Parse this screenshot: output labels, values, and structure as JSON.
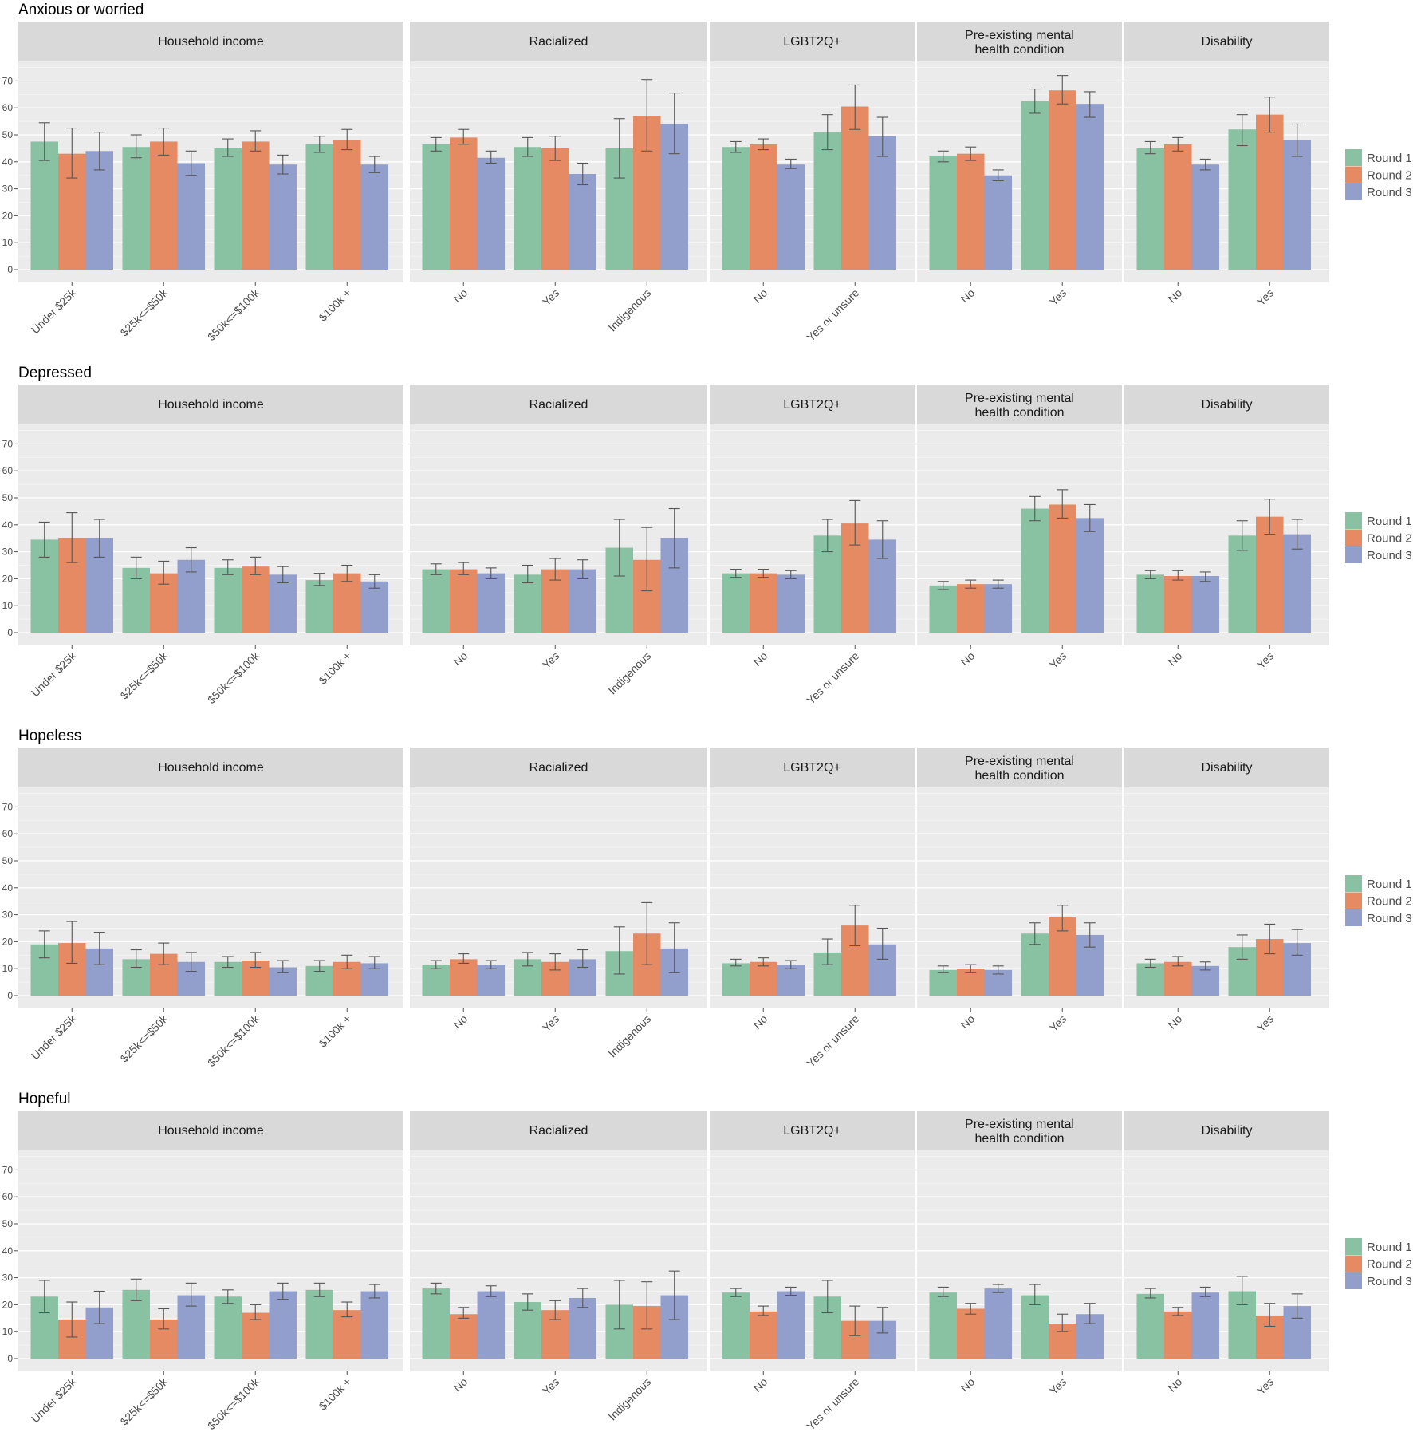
{
  "chart_data": {
    "type": "bar",
    "series_names": [
      "Round 1",
      "Round 2",
      "Round 3"
    ],
    "colors": [
      "#88c2a3",
      "#e58a62",
      "#929fcc"
    ],
    "y_ticks": [
      0,
      10,
      20,
      30,
      40,
      50,
      60,
      70
    ],
    "ylim": [
      -5,
      80
    ],
    "error_bars": true,
    "legend_position": "right",
    "panels": [
      {
        "title": "Household income",
        "categories": [
          "Under $25k",
          "$25k<=$50k",
          "$50k<=$100k",
          "$100k +"
        ]
      },
      {
        "title": "Racialized",
        "categories": [
          "No",
          "Yes",
          "Indigenous"
        ]
      },
      {
        "title": "LGBT2Q+",
        "categories": [
          "No",
          "Yes or unsure"
        ]
      },
      {
        "title": "Pre-existing mental health condition",
        "title_lines": [
          "Pre-existing mental",
          "health condition"
        ],
        "categories": [
          "No",
          "Yes"
        ]
      },
      {
        "title": "Disability",
        "categories": [
          "No",
          "Yes"
        ]
      }
    ],
    "rows": [
      {
        "title": "Anxious or worried",
        "values": [
          [
            [
              47.5,
              40.5,
              54.5
            ],
            [
              43.0,
              34.0,
              52.5
            ],
            [
              44.0,
              37.0,
              51.0
            ]
          ],
          [
            [
              45.5,
              41.5,
              50.0
            ],
            [
              47.5,
              42.5,
              52.5
            ],
            [
              39.5,
              35.0,
              44.0
            ]
          ],
          [
            [
              45.0,
              42.0,
              48.5
            ],
            [
              47.5,
              44.0,
              51.5
            ],
            [
              39.0,
              35.5,
              42.5
            ]
          ],
          [
            [
              46.5,
              43.5,
              49.5
            ],
            [
              48.0,
              44.5,
              52.0
            ],
            [
              39.0,
              36.0,
              42.0
            ]
          ],
          [
            [
              46.5,
              44.0,
              49.0
            ],
            [
              49.0,
              46.5,
              52.0
            ],
            [
              41.5,
              39.5,
              44.0
            ]
          ],
          [
            [
              45.5,
              42.0,
              49.0
            ],
            [
              45.0,
              40.5,
              49.5
            ],
            [
              35.5,
              31.5,
              39.5
            ]
          ],
          [
            [
              45.0,
              34.0,
              56.0
            ],
            [
              57.0,
              44.0,
              70.5
            ],
            [
              54.0,
              43.0,
              65.5
            ]
          ],
          [
            [
              45.5,
              43.5,
              47.5
            ],
            [
              46.5,
              44.5,
              48.5
            ],
            [
              39.0,
              37.5,
              41.0
            ]
          ],
          [
            [
              51.0,
              44.5,
              57.5
            ],
            [
              60.5,
              52.0,
              68.5
            ],
            [
              49.5,
              42.0,
              56.5
            ]
          ],
          [
            [
              42.0,
              40.0,
              44.0
            ],
            [
              43.0,
              40.5,
              45.5
            ],
            [
              35.0,
              33.0,
              37.0
            ]
          ],
          [
            [
              62.5,
              58.0,
              67.0
            ],
            [
              66.5,
              61.5,
              72.0
            ],
            [
              61.5,
              56.5,
              66.0
            ]
          ],
          [
            [
              45.0,
              43.0,
              47.5
            ],
            [
              46.5,
              44.0,
              49.0
            ],
            [
              39.0,
              37.0,
              41.0
            ]
          ],
          [
            [
              52.0,
              46.0,
              57.5
            ],
            [
              57.5,
              51.0,
              64.0
            ],
            [
              48.0,
              42.0,
              54.0
            ]
          ]
        ]
      },
      {
        "title": "Depressed",
        "values": [
          [
            [
              34.5,
              28.0,
              41.0
            ],
            [
              35.0,
              26.0,
              44.5
            ],
            [
              35.0,
              28.0,
              42.0
            ]
          ],
          [
            [
              24.0,
              20.0,
              28.0
            ],
            [
              22.0,
              18.0,
              26.5
            ],
            [
              27.0,
              22.5,
              31.5
            ]
          ],
          [
            [
              24.0,
              21.5,
              27.0
            ],
            [
              24.5,
              21.5,
              28.0
            ],
            [
              21.5,
              18.5,
              24.5
            ]
          ],
          [
            [
              19.5,
              17.5,
              22.0
            ],
            [
              22.0,
              19.0,
              25.0
            ],
            [
              19.0,
              16.5,
              21.5
            ]
          ],
          [
            [
              23.5,
              21.5,
              25.5
            ],
            [
              23.5,
              21.5,
              26.0
            ],
            [
              22.0,
              20.0,
              24.0
            ]
          ],
          [
            [
              21.5,
              18.5,
              25.0
            ],
            [
              23.5,
              19.5,
              27.5
            ],
            [
              23.5,
              20.0,
              27.0
            ]
          ],
          [
            [
              31.5,
              21.0,
              42.0
            ],
            [
              27.0,
              15.5,
              39.0
            ],
            [
              35.0,
              24.0,
              46.0
            ]
          ],
          [
            [
              22.0,
              20.5,
              23.5
            ],
            [
              22.0,
              20.5,
              23.5
            ],
            [
              21.5,
              20.0,
              23.0
            ]
          ],
          [
            [
              36.0,
              30.0,
              42.0
            ],
            [
              40.5,
              32.5,
              49.0
            ],
            [
              34.5,
              27.5,
              41.5
            ]
          ],
          [
            [
              17.5,
              16.0,
              19.0
            ],
            [
              18.0,
              16.5,
              19.5
            ],
            [
              18.0,
              16.5,
              19.5
            ]
          ],
          [
            [
              46.0,
              41.5,
              50.5
            ],
            [
              47.5,
              42.5,
              53.0
            ],
            [
              42.5,
              37.5,
              47.5
            ]
          ],
          [
            [
              21.5,
              20.0,
              23.0
            ],
            [
              21.0,
              19.5,
              23.0
            ],
            [
              21.0,
              19.0,
              22.5
            ]
          ],
          [
            [
              36.0,
              30.5,
              41.5
            ],
            [
              43.0,
              36.5,
              49.5
            ],
            [
              36.5,
              31.0,
              42.0
            ]
          ]
        ]
      },
      {
        "title": "Hopeless",
        "values": [
          [
            [
              19.0,
              14.0,
              24.0
            ],
            [
              19.5,
              12.0,
              27.5
            ],
            [
              17.5,
              11.5,
              23.5
            ]
          ],
          [
            [
              13.5,
              10.5,
              17.0
            ],
            [
              15.5,
              11.5,
              19.5
            ],
            [
              12.5,
              9.0,
              16.0
            ]
          ],
          [
            [
              12.5,
              10.5,
              14.5
            ],
            [
              13.0,
              10.5,
              16.0
            ],
            [
              10.5,
              8.5,
              13.0
            ]
          ],
          [
            [
              11.0,
              9.0,
              13.0
            ],
            [
              12.5,
              10.0,
              15.0
            ],
            [
              12.0,
              10.0,
              14.5
            ]
          ],
          [
            [
              11.5,
              10.0,
              13.0
            ],
            [
              13.5,
              12.0,
              15.5
            ],
            [
              11.5,
              10.0,
              13.0
            ]
          ],
          [
            [
              13.5,
              11.0,
              16.0
            ],
            [
              12.5,
              9.5,
              15.5
            ],
            [
              13.5,
              10.5,
              17.0
            ]
          ],
          [
            [
              16.5,
              8.0,
              25.5
            ],
            [
              23.0,
              11.5,
              34.5
            ],
            [
              17.5,
              8.5,
              27.0
            ]
          ],
          [
            [
              12.0,
              11.0,
              13.5
            ],
            [
              12.5,
              11.0,
              14.0
            ],
            [
              11.5,
              10.0,
              13.0
            ]
          ],
          [
            [
              16.0,
              11.5,
              21.0
            ],
            [
              26.0,
              18.5,
              33.5
            ],
            [
              19.0,
              13.5,
              25.0
            ]
          ],
          [
            [
              9.5,
              8.5,
              11.0
            ],
            [
              10.0,
              8.5,
              11.5
            ],
            [
              9.5,
              8.0,
              11.0
            ]
          ],
          [
            [
              23.0,
              19.0,
              27.0
            ],
            [
              29.0,
              24.0,
              33.5
            ],
            [
              22.5,
              18.0,
              27.0
            ]
          ],
          [
            [
              12.0,
              10.5,
              13.5
            ],
            [
              12.5,
              11.0,
              14.5
            ],
            [
              11.0,
              9.5,
              12.5
            ]
          ],
          [
            [
              18.0,
              13.5,
              22.5
            ],
            [
              21.0,
              15.5,
              26.5
            ],
            [
              19.5,
              15.0,
              24.5
            ]
          ]
        ]
      },
      {
        "title": "Hopeful",
        "values": [
          [
            [
              23.0,
              17.0,
              29.0
            ],
            [
              14.5,
              8.0,
              21.0
            ],
            [
              19.0,
              13.0,
              25.0
            ]
          ],
          [
            [
              25.5,
              21.5,
              29.5
            ],
            [
              14.5,
              11.0,
              18.5
            ],
            [
              23.5,
              19.5,
              28.0
            ]
          ],
          [
            [
              23.0,
              20.5,
              25.5
            ],
            [
              17.0,
              14.5,
              20.0
            ],
            [
              25.0,
              22.0,
              28.0
            ]
          ],
          [
            [
              25.5,
              23.0,
              28.0
            ],
            [
              18.0,
              15.5,
              21.0
            ],
            [
              25.0,
              22.5,
              27.5
            ]
          ],
          [
            [
              26.0,
              24.0,
              28.0
            ],
            [
              16.5,
              15.0,
              19.0
            ],
            [
              25.0,
              23.0,
              27.0
            ]
          ],
          [
            [
              21.0,
              18.0,
              24.0
            ],
            [
              18.0,
              14.5,
              21.5
            ],
            [
              22.5,
              19.0,
              26.0
            ]
          ],
          [
            [
              20.0,
              11.0,
              29.0
            ],
            [
              19.5,
              11.0,
              28.5
            ],
            [
              23.5,
              14.5,
              32.5
            ]
          ],
          [
            [
              24.5,
              23.0,
              26.0
            ],
            [
              17.5,
              16.0,
              19.5
            ],
            [
              25.0,
              23.5,
              26.5
            ]
          ],
          [
            [
              23.0,
              17.0,
              29.0
            ],
            [
              14.0,
              8.5,
              19.5
            ],
            [
              14.0,
              9.5,
              19.0
            ]
          ],
          [
            [
              24.5,
              23.0,
              26.5
            ],
            [
              18.5,
              16.5,
              20.5
            ],
            [
              26.0,
              24.5,
              27.5
            ]
          ],
          [
            [
              23.5,
              20.0,
              27.5
            ],
            [
              13.0,
              10.0,
              16.5
            ],
            [
              16.5,
              13.0,
              20.5
            ]
          ],
          [
            [
              24.0,
              22.5,
              26.0
            ],
            [
              17.5,
              16.0,
              19.0
            ],
            [
              24.5,
              23.0,
              26.5
            ]
          ],
          [
            [
              25.0,
              20.0,
              30.5
            ],
            [
              16.0,
              12.0,
              20.5
            ],
            [
              19.5,
              15.0,
              24.0
            ]
          ]
        ]
      }
    ]
  }
}
